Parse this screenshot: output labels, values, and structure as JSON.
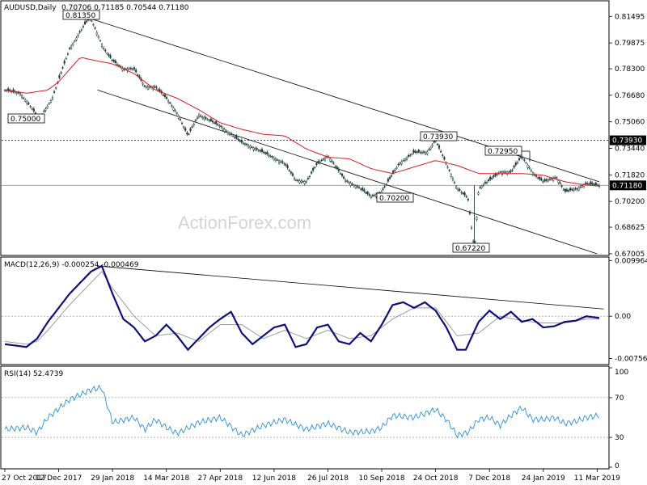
{
  "header": {
    "symbol_line": "AUDUSD,Daily",
    "ohlc": "0.70706 0.71185 0.70544 0.71180"
  },
  "watermark": "ActionForex.com",
  "price_panel": {
    "y_ticks": [
      "0.81495",
      "0.79875",
      "0.78300",
      "0.76680",
      "0.75060",
      "0.73440",
      "0.71820",
      "0.70200",
      "0.68625",
      "0.67005"
    ],
    "level_line": "0.73930",
    "current_price": "0.71180",
    "annotations": [
      "0.81350",
      "0.75000",
      "0.73930",
      "0.72950",
      "0.70200",
      "0.67220"
    ]
  },
  "macd_panel": {
    "title": "MACD(12,26,9) -0.000254 -0.000469",
    "y_ticks": [
      "0.009964",
      "0.00",
      "-0.00756"
    ]
  },
  "rsi_panel": {
    "title": "RSI(14) 52.4739",
    "y_ticks": [
      "100",
      "70",
      "30",
      "0"
    ]
  },
  "x_axis": {
    "ticks": [
      "27 Oct 2017",
      "12 Dec 2017",
      "29 Jan 2018",
      "14 Mar 2018",
      "27 Apr 2018",
      "12 Jun 2018",
      "26 Jul 2018",
      "10 Sep 2018",
      "24 Oct 2018",
      "7 Dec 2018",
      "24 Jan 2019",
      "11 Mar 2019"
    ]
  },
  "colors": {
    "candles": "#1f3a3a",
    "moving_average": "#d81e1e",
    "macd_line": "#10107a",
    "signal_line": "#9a9a9a",
    "rsi_line": "#2b8fd8",
    "trendline": "#000000",
    "current_price_box": "#000000"
  },
  "chart_data": [
    {
      "type": "candlestick",
      "name": "AUDUSD Daily",
      "x_label_dates": [
        "27 Oct 2017",
        "12 Dec 2017",
        "29 Jan 2018",
        "14 Mar 2018",
        "27 Apr 2018",
        "12 Jun 2018",
        "26 Jul 2018",
        "10 Sep 2018",
        "24 Oct 2018",
        "7 Dec 2018",
        "24 Jan 2019",
        "11 Mar 2019"
      ],
      "close_path": [
        [
          0,
          0.77
        ],
        [
          0.7,
          0.768
        ],
        [
          1.2,
          0.76
        ],
        [
          1.6,
          0.752
        ],
        [
          2.2,
          0.765
        ],
        [
          3,
          0.795
        ],
        [
          3.8,
          0.812
        ],
        [
          4,
          0.8135
        ],
        [
          4.6,
          0.795
        ],
        [
          5,
          0.788
        ],
        [
          5.5,
          0.783
        ],
        [
          6,
          0.783
        ],
        [
          6.5,
          0.772
        ],
        [
          7,
          0.772
        ],
        [
          7.5,
          0.765
        ],
        [
          8,
          0.756
        ],
        [
          8.5,
          0.742
        ],
        [
          9,
          0.755
        ],
        [
          10,
          0.748
        ],
        [
          11,
          0.738
        ],
        [
          12,
          0.732
        ],
        [
          13,
          0.725
        ],
        [
          13.5,
          0.715
        ],
        [
          14,
          0.714
        ],
        [
          14.5,
          0.725
        ],
        [
          15,
          0.73
        ],
        [
          15.8,
          0.715
        ],
        [
          16.5,
          0.71
        ],
        [
          17,
          0.705
        ],
        [
          17.5,
          0.708
        ],
        [
          18.3,
          0.725
        ],
        [
          19,
          0.732
        ],
        [
          19.6,
          0.732
        ],
        [
          20,
          0.7393
        ],
        [
          20.6,
          0.722
        ],
        [
          21,
          0.71
        ],
        [
          21.5,
          0.704
        ],
        [
          21.8,
          0.6722
        ],
        [
          22,
          0.71
        ],
        [
          22.5,
          0.715
        ],
        [
          23,
          0.72
        ],
        [
          23.5,
          0.72
        ],
        [
          24,
          0.7295
        ],
        [
          24.6,
          0.718
        ],
        [
          25,
          0.714
        ],
        [
          25.6,
          0.717
        ],
        [
          26,
          0.708
        ],
        [
          26.6,
          0.71
        ],
        [
          27,
          0.713
        ],
        [
          27.6,
          0.7118
        ]
      ],
      "moving_average_path": [
        [
          0,
          0.77
        ],
        [
          1,
          0.768
        ],
        [
          2,
          0.77
        ],
        [
          2.5,
          0.775
        ],
        [
          3.5,
          0.79
        ],
        [
          4.2,
          0.788
        ],
        [
          5,
          0.786
        ],
        [
          6,
          0.78
        ],
        [
          7,
          0.77
        ],
        [
          8,
          0.765
        ],
        [
          9,
          0.758
        ],
        [
          10,
          0.75
        ],
        [
          11,
          0.746
        ],
        [
          12,
          0.743
        ],
        [
          13,
          0.742
        ],
        [
          14,
          0.734
        ],
        [
          15,
          0.729
        ],
        [
          16,
          0.728
        ],
        [
          17,
          0.722
        ],
        [
          18,
          0.719
        ],
        [
          19,
          0.723
        ],
        [
          20,
          0.727
        ],
        [
          21,
          0.724
        ],
        [
          22,
          0.719
        ],
        [
          23,
          0.719
        ],
        [
          24,
          0.719
        ],
        [
          25,
          0.718
        ],
        [
          26,
          0.714
        ],
        [
          27,
          0.712
        ],
        [
          27.6,
          0.7115
        ]
      ],
      "levels": {
        "horizontal": 0.7393,
        "current": 0.7118
      },
      "annotations": [
        {
          "label": "0.81350",
          "value": 0.8135
        },
        {
          "label": "0.75000",
          "value": 0.75
        },
        {
          "label": "0.73930",
          "value": 0.7393
        },
        {
          "label": "0.72950",
          "value": 0.7295
        },
        {
          "label": "0.70200",
          "value": 0.702
        },
        {
          "label": "0.67220",
          "value": 0.6722
        }
      ],
      "trend_channel": {
        "upper": [
          [
            4,
            0.8135
          ],
          [
            27.6,
            0.714
          ]
        ],
        "lower": [
          [
            4.3,
            0.77
          ],
          [
            27.5,
            0.67
          ]
        ]
      },
      "ylim": [
        0.67,
        0.822
      ]
    },
    {
      "type": "line",
      "name": "MACD(12,26,9)",
      "macd": [
        [
          0,
          -0.005
        ],
        [
          1,
          -0.0055
        ],
        [
          1.5,
          -0.004
        ],
        [
          2,
          -0.001
        ],
        [
          3,
          0.004
        ],
        [
          4,
          0.008
        ],
        [
          4.5,
          0.009
        ],
        [
          5,
          0.004
        ],
        [
          5.5,
          -0.0005
        ],
        [
          6,
          -0.002
        ],
        [
          6.5,
          -0.0045
        ],
        [
          7,
          -0.0035
        ],
        [
          7.5,
          -0.0015
        ],
        [
          8,
          -0.0035
        ],
        [
          8.5,
          -0.006
        ],
        [
          9,
          -0.004
        ],
        [
          9.5,
          -0.002
        ],
        [
          10,
          -0.0005
        ],
        [
          10.5,
          0.0008
        ],
        [
          11,
          -0.003
        ],
        [
          11.5,
          -0.005
        ],
        [
          12,
          -0.0035
        ],
        [
          12.5,
          -0.002
        ],
        [
          13,
          -0.0015
        ],
        [
          13.5,
          -0.0055
        ],
        [
          14,
          -0.005
        ],
        [
          14.5,
          -0.002
        ],
        [
          15,
          -0.0015
        ],
        [
          15.5,
          -0.0045
        ],
        [
          16,
          -0.005
        ],
        [
          16.5,
          -0.003
        ],
        [
          17,
          -0.0045
        ],
        [
          17.5,
          -0.0015
        ],
        [
          18,
          0.002
        ],
        [
          18.5,
          0.0025
        ],
        [
          19,
          0.0015
        ],
        [
          19.5,
          0.0025
        ],
        [
          20,
          0.001
        ],
        [
          20.5,
          -0.002
        ],
        [
          21,
          -0.006
        ],
        [
          21.4,
          -0.006
        ],
        [
          22,
          -0.001
        ],
        [
          22.5,
          0.001
        ],
        [
          23,
          -0.0005
        ],
        [
          23.5,
          0.0008
        ],
        [
          24,
          -0.001
        ],
        [
          24.5,
          -0.0005
        ],
        [
          25,
          -0.002
        ],
        [
          25.5,
          -0.0018
        ],
        [
          26,
          -0.001
        ],
        [
          26.5,
          -0.0008
        ],
        [
          27,
          0.0
        ],
        [
          27.6,
          -0.0003
        ]
      ],
      "signal": [
        [
          0,
          -0.0045
        ],
        [
          1,
          -0.005
        ],
        [
          1.5,
          -0.0045
        ],
        [
          2,
          -0.0025
        ],
        [
          3,
          0.002
        ],
        [
          4,
          0.006
        ],
        [
          4.5,
          0.008
        ],
        [
          5,
          0.005
        ],
        [
          6,
          0.0
        ],
        [
          7,
          -0.0035
        ],
        [
          8,
          -0.003
        ],
        [
          9,
          -0.0045
        ],
        [
          10,
          -0.0015
        ],
        [
          11,
          -0.0015
        ],
        [
          12,
          -0.004
        ],
        [
          13,
          -0.0025
        ],
        [
          14,
          -0.004
        ],
        [
          15,
          -0.0025
        ],
        [
          16,
          -0.004
        ],
        [
          17,
          -0.0035
        ],
        [
          18,
          -0.0005
        ],
        [
          19,
          0.0015
        ],
        [
          20,
          0.0015
        ],
        [
          21,
          -0.0035
        ],
        [
          22,
          -0.003
        ],
        [
          23,
          0.0
        ],
        [
          24,
          -0.0008
        ],
        [
          25,
          -0.0012
        ],
        [
          26,
          -0.0012
        ],
        [
          27,
          -0.0005
        ],
        [
          27.6,
          -0.0005
        ]
      ],
      "trendline": [
        [
          4.3,
          0.009
        ],
        [
          27.8,
          0.0013
        ]
      ],
      "ylim": [
        -0.0085,
        0.0103
      ]
    },
    {
      "type": "line",
      "name": "RSI(14)",
      "values": [
        [
          0,
          38
        ],
        [
          1,
          40
        ],
        [
          1.5,
          35
        ],
        [
          2,
          50
        ],
        [
          3,
          68
        ],
        [
          4,
          78
        ],
        [
          4.5,
          80
        ],
        [
          5,
          45
        ],
        [
          6,
          50
        ],
        [
          6.5,
          38
        ],
        [
          7,
          48
        ],
        [
          7.5,
          40
        ],
        [
          8,
          34
        ],
        [
          9,
          45
        ],
        [
          10,
          50
        ],
        [
          11,
          32
        ],
        [
          12,
          42
        ],
        [
          13,
          48
        ],
        [
          14,
          38
        ],
        [
          15,
          44
        ],
        [
          16,
          35
        ],
        [
          17,
          36
        ],
        [
          17.5,
          40
        ],
        [
          18,
          52
        ],
        [
          19,
          50
        ],
        [
          20,
          58
        ],
        [
          20.5,
          48
        ],
        [
          21,
          32
        ],
        [
          21.5,
          35
        ],
        [
          22,
          48
        ],
        [
          22.5,
          50
        ],
        [
          23,
          42
        ],
        [
          23.5,
          52
        ],
        [
          24,
          60
        ],
        [
          24.5,
          48
        ],
        [
          25,
          48
        ],
        [
          25.5,
          50
        ],
        [
          26,
          44
        ],
        [
          26.5,
          46
        ],
        [
          27,
          50
        ],
        [
          27.6,
          52
        ]
      ],
      "ylim": [
        0,
        100
      ],
      "levels": [
        70,
        30
      ]
    }
  ]
}
